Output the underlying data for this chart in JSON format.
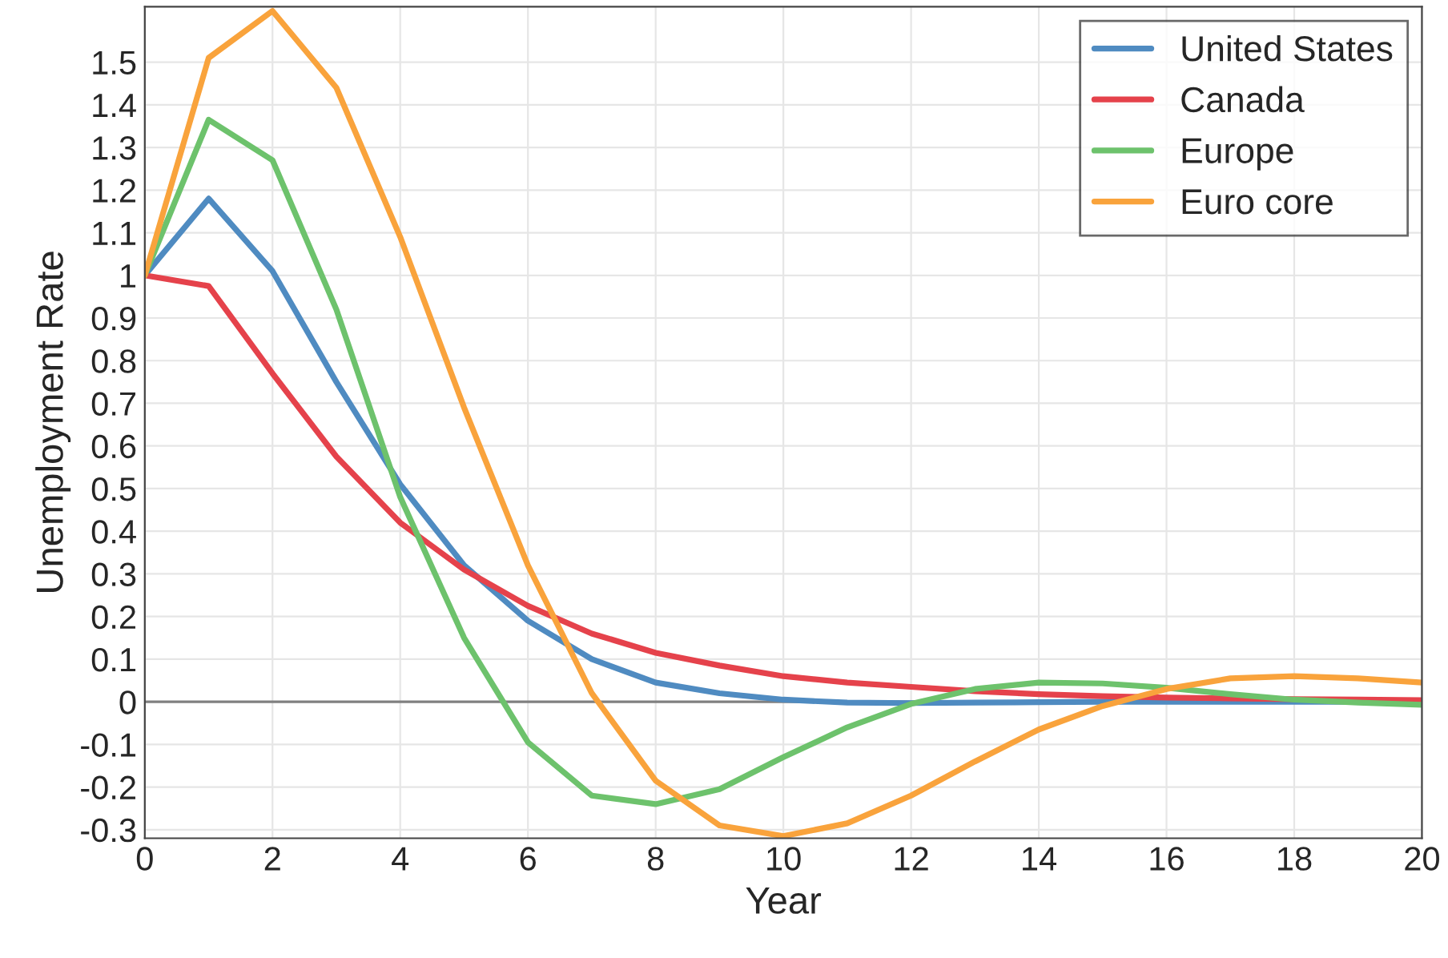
{
  "chart_data": {
    "type": "line",
    "xlabel": "Year",
    "ylabel": "Unemployment Rate",
    "x": [
      0,
      1,
      2,
      3,
      4,
      5,
      6,
      7,
      8,
      9,
      10,
      11,
      12,
      13,
      14,
      15,
      16,
      17,
      18,
      19,
      20
    ],
    "series": [
      {
        "name": "United States",
        "color": "#4f8bc1",
        "values": [
          1,
          1.18,
          1.01,
          0.75,
          0.51,
          0.32,
          0.19,
          0.1,
          0.045,
          0.02,
          0.005,
          -0.002,
          -0.003,
          -0.002,
          -0.001,
          0,
          0,
          0,
          0,
          0,
          0
        ]
      },
      {
        "name": "Canada",
        "color": "#e5424b",
        "values": [
          1,
          0.975,
          0.77,
          0.575,
          0.42,
          0.31,
          0.225,
          0.16,
          0.115,
          0.085,
          0.06,
          0.045,
          0.035,
          0.025,
          0.018,
          0.013,
          0.01,
          0.008,
          0.006,
          0.005,
          0.004
        ]
      },
      {
        "name": "Europe",
        "color": "#6dc26c",
        "values": [
          1,
          1.365,
          1.27,
          0.92,
          0.48,
          0.15,
          -0.095,
          -0.22,
          -0.24,
          -0.205,
          -0.13,
          -0.06,
          -0.005,
          0.03,
          0.045,
          0.043,
          0.033,
          0.018,
          0.005,
          -0.002,
          -0.007
        ]
      },
      {
        "name": "Euro core",
        "color": "#f9a33c",
        "values": [
          1,
          1.51,
          1.62,
          1.44,
          1.09,
          0.69,
          0.32,
          0.02,
          -0.185,
          -0.29,
          -0.315,
          -0.285,
          -0.22,
          -0.14,
          -0.065,
          -0.01,
          0.03,
          0.055,
          0.06,
          0.055,
          0.045
        ]
      }
    ],
    "xlim": [
      0,
      20
    ],
    "xticks": [
      0,
      2,
      4,
      6,
      8,
      10,
      12,
      14,
      16,
      18,
      20
    ],
    "ylim": [
      -0.32,
      1.63
    ],
    "yticks": [
      -0.3,
      -0.2,
      -0.1,
      0,
      0.1,
      0.2,
      0.3,
      0.4,
      0.5,
      0.6,
      0.7,
      0.8,
      0.9,
      1,
      1.1,
      1.2,
      1.3,
      1.4,
      1.5
    ],
    "ref_lines": [
      {
        "axis": "y",
        "value": 0,
        "color": "#808080"
      }
    ],
    "grid": true,
    "legend": "top right",
    "marker": "none",
    "line_style": "solid"
  }
}
